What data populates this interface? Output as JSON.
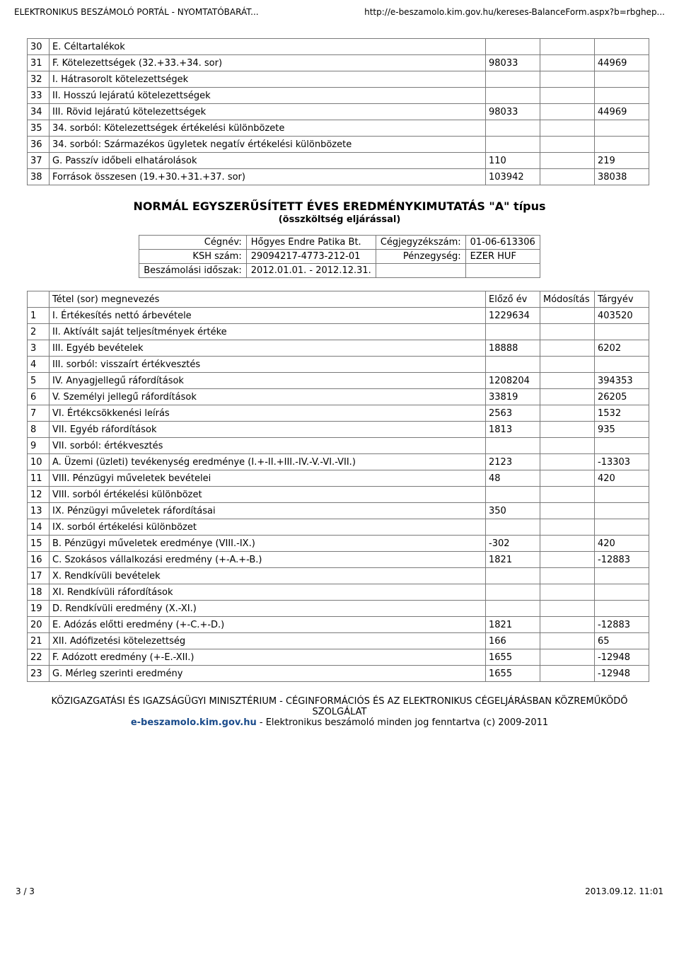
{
  "header": {
    "left": "ELEKTRONIKUS BESZÁMOLÓ PORTÁL - NYOMTATÓBARÁT...",
    "right": "http://e-beszamolo.kim.gov.hu/kereses-BalanceForm.aspx?b=rbghep..."
  },
  "colors": {
    "border": "#7a7a7a",
    "link": "#1a4b8b",
    "text": "#000000",
    "bg": "#ffffff"
  },
  "table1": {
    "rows": [
      {
        "n": "30",
        "label": "E. Céltartalékok",
        "prev": "",
        "mod": "",
        "cur": ""
      },
      {
        "n": "31",
        "label": "F. Kötelezettségek (32.+33.+34. sor)",
        "prev": "98033",
        "mod": "",
        "cur": "44969"
      },
      {
        "n": "32",
        "label": "I. Hátrasorolt kötelezettségek",
        "prev": "",
        "mod": "",
        "cur": ""
      },
      {
        "n": "33",
        "label": "II. Hosszú lejáratú kötelezettségek",
        "prev": "",
        "mod": "",
        "cur": ""
      },
      {
        "n": "34",
        "label": "III. Rövid lejáratú kötelezettségek",
        "prev": "98033",
        "mod": "",
        "cur": "44969"
      },
      {
        "n": "35",
        "label": "34. sorból: Kötelezettségek értékelési különbözete",
        "prev": "",
        "mod": "",
        "cur": ""
      },
      {
        "n": "36",
        "label": "34. sorból: Származékos ügyletek negatív értékelési különbözete",
        "prev": "",
        "mod": "",
        "cur": ""
      },
      {
        "n": "37",
        "label": "G. Passzív időbeli elhatárolások",
        "prev": "110",
        "mod": "",
        "cur": "219"
      },
      {
        "n": "38",
        "label": "Források összesen (19.+30.+31.+37. sor)",
        "prev": "103942",
        "mod": "",
        "cur": "38038"
      }
    ]
  },
  "section2": {
    "title": "NORMÁL EGYSZERŰSÍTETT ÉVES EREDMÉNYKIMUTATÁS \"A\" típus",
    "subtitle": "(összköltség eljárással)"
  },
  "meta": {
    "rows": [
      [
        "Cégnév:",
        "Hőgyes Endre Patika Bt.",
        "Cégjegyzékszám:",
        "01-06-613306"
      ],
      [
        "KSH szám:",
        "29094217-4773-212-01",
        "Pénzegység:",
        "EZER HUF"
      ],
      [
        "Beszámolási időszak:",
        "2012.01.01. - 2012.12.31.",
        "",
        ""
      ]
    ]
  },
  "table2": {
    "headers": [
      "",
      "Tétel (sor) megnevezés",
      "Előző év",
      "Módosítás",
      "Tárgyév"
    ],
    "rows": [
      {
        "n": "1",
        "label": "I. Értékesítés nettó árbevétele",
        "prev": "1229634",
        "mod": "",
        "cur": "403520"
      },
      {
        "n": "2",
        "label": "II. Aktívált saját teljesítmények értéke",
        "prev": "",
        "mod": "",
        "cur": ""
      },
      {
        "n": "3",
        "label": "III. Egyéb bevételek",
        "prev": "18888",
        "mod": "",
        "cur": "6202"
      },
      {
        "n": "4",
        "label": "III. sorból: visszaírt értékvesztés",
        "prev": "",
        "mod": "",
        "cur": ""
      },
      {
        "n": "5",
        "label": "IV. Anyagjellegű ráfordítások",
        "prev": "1208204",
        "mod": "",
        "cur": "394353"
      },
      {
        "n": "6",
        "label": "V. Személyi jellegű ráfordítások",
        "prev": "33819",
        "mod": "",
        "cur": "26205"
      },
      {
        "n": "7",
        "label": "VI. Értékcsökkenési leírás",
        "prev": "2563",
        "mod": "",
        "cur": "1532"
      },
      {
        "n": "8",
        "label": "VII. Egyéb ráfordítások",
        "prev": "1813",
        "mod": "",
        "cur": "935"
      },
      {
        "n": "9",
        "label": "VII. sorból: értékvesztés",
        "prev": "",
        "mod": "",
        "cur": ""
      },
      {
        "n": "10",
        "label": "A. Üzemi (üzleti) tevékenység eredménye (I.+-II.+III.-IV.-V.-VI.-VII.)",
        "prev": "2123",
        "mod": "",
        "cur": "-13303"
      },
      {
        "n": "11",
        "label": "VIII. Pénzügyi műveletek bevételei",
        "prev": "48",
        "mod": "",
        "cur": "420"
      },
      {
        "n": "12",
        "label": "VIII. sorból értékelési különbözet",
        "prev": "",
        "mod": "",
        "cur": ""
      },
      {
        "n": "13",
        "label": "IX. Pénzügyi műveletek ráfordításai",
        "prev": "350",
        "mod": "",
        "cur": ""
      },
      {
        "n": "14",
        "label": "IX. sorból értékelési különbözet",
        "prev": "",
        "mod": "",
        "cur": ""
      },
      {
        "n": "15",
        "label": "B. Pénzügyi műveletek eredménye (VIII.-IX.)",
        "prev": "-302",
        "mod": "",
        "cur": "420"
      },
      {
        "n": "16",
        "label": "C. Szokásos vállalkozási eredmény (+-A.+-B.)",
        "prev": "1821",
        "mod": "",
        "cur": "-12883"
      },
      {
        "n": "17",
        "label": "X. Rendkívüli bevételek",
        "prev": "",
        "mod": "",
        "cur": ""
      },
      {
        "n": "18",
        "label": "XI. Rendkívüli ráfordítások",
        "prev": "",
        "mod": "",
        "cur": ""
      },
      {
        "n": "19",
        "label": "D. Rendkívüli eredmény (X.-XI.)",
        "prev": "",
        "mod": "",
        "cur": ""
      },
      {
        "n": "20",
        "label": "E. Adózás előtti eredmény (+-C.+-D.)",
        "prev": "1821",
        "mod": "",
        "cur": "-12883"
      },
      {
        "n": "21",
        "label": "XII. Adófizetési kötelezettség",
        "prev": "166",
        "mod": "",
        "cur": "65"
      },
      {
        "n": "22",
        "label": "F. Adózott eredmény (+-E.-XII.)",
        "prev": "1655",
        "mod": "",
        "cur": "-12948"
      },
      {
        "n": "23",
        "label": "G. Mérleg szerinti eredmény",
        "prev": "1655",
        "mod": "",
        "cur": "-12948"
      }
    ]
  },
  "footer": {
    "line1": "KÖZIGAZGATÁSI ÉS IGAZSÁGÜGYI MINISZTÉRIUM - CÉGINFORMÁCIÓS ÉS AZ ELEKTRONIKUS CÉGELJÁRÁSBAN KÖZREMŰKÖDŐ SZOLGÁLAT",
    "link": "e-beszamolo.kim.gov.hu",
    "rest": " - Elektronikus beszámoló   minden jog fenntartva (c) 2009-2011"
  },
  "pagefooter": {
    "left": "3 / 3",
    "right": "2013.09.12. 11:01"
  }
}
